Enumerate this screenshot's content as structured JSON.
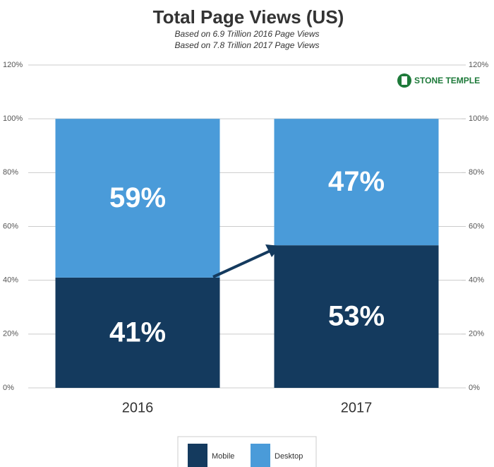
{
  "chart_data": {
    "type": "stacked-bar",
    "title": "Total Page Views (US)",
    "subtitles": [
      "Based on 6.9 Trillion 2016 Page Views",
      "Based on 7.8 Trillion 2017 Page Views"
    ],
    "logo_text": "STONE TEMPLE",
    "categories": [
      "2016",
      "2017"
    ],
    "series": [
      {
        "name": "Mobile",
        "color": "#143a5e",
        "values": [
          41,
          53
        ],
        "value_labels": [
          "41%",
          "53%"
        ]
      },
      {
        "name": "Desktop",
        "color": "#4a9bd9",
        "values": [
          59,
          47
        ],
        "value_labels": [
          "59%",
          "47%"
        ]
      }
    ],
    "ylim": [
      0,
      120
    ],
    "yticks": [
      {
        "value": 0,
        "label": "0%"
      },
      {
        "value": 20,
        "label": "20%"
      },
      {
        "value": 40,
        "label": "40%"
      },
      {
        "value": 60,
        "label": "60%"
      },
      {
        "value": 80,
        "label": "80%"
      },
      {
        "value": 100,
        "label": "100%"
      },
      {
        "value": 120,
        "label": "120%"
      }
    ],
    "y2lim": [
      0,
      120
    ],
    "y2ticks": [
      {
        "value": 0,
        "label": "0%"
      },
      {
        "value": 20,
        "label": "20%"
      },
      {
        "value": 40,
        "label": "40%"
      },
      {
        "value": 60,
        "label": "60%"
      },
      {
        "value": 80,
        "label": "80%"
      },
      {
        "value": 100,
        "label": "100%"
      },
      {
        "value": 120,
        "label": "120%"
      }
    ],
    "grid": true,
    "legend": "bottom"
  }
}
